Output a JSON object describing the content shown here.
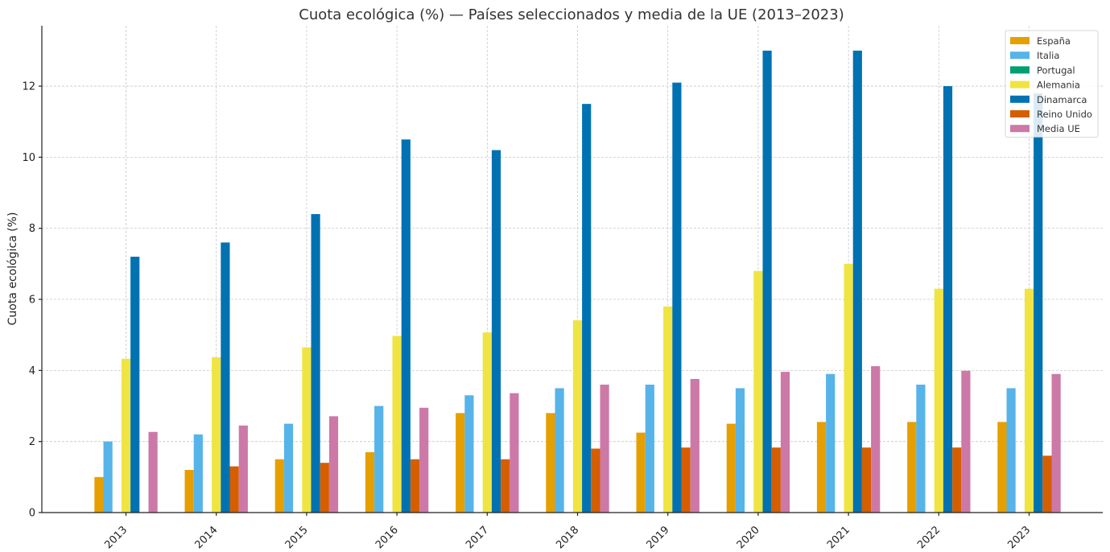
{
  "chart_data": {
    "type": "bar",
    "title": "Cuota ecológica (%) — Países seleccionados y media de la UE (2013–2023)",
    "xlabel": "",
    "ylabel": "Cuota ecológica (%)",
    "ylim": [
      0,
      13.7
    ],
    "yticks": [
      "0",
      "2",
      "4",
      "6",
      "8",
      "10",
      "12"
    ],
    "grid": true,
    "legend_position": "top-right",
    "categories": [
      "2013",
      "2014",
      "2015",
      "2016",
      "2017",
      "2018",
      "2019",
      "2020",
      "2021",
      "2022",
      "2023"
    ],
    "series": [
      {
        "name": "España",
        "color": "#E69F00",
        "values": [
          1.0,
          1.2,
          1.5,
          1.7,
          2.8,
          2.8,
          2.25,
          2.5,
          2.55,
          2.55,
          2.55
        ]
      },
      {
        "name": "Italia",
        "color": "#56B4E9",
        "values": [
          2.0,
          2.2,
          2.5,
          3.0,
          3.3,
          3.5,
          3.6,
          3.5,
          3.9,
          3.6,
          3.5
        ]
      },
      {
        "name": "Portugal",
        "color": "#009E73",
        "values": [
          null,
          null,
          null,
          null,
          null,
          null,
          null,
          null,
          null,
          null,
          null
        ]
      },
      {
        "name": "Alemania",
        "color": "#F0E442",
        "values": [
          4.33,
          4.37,
          4.65,
          4.97,
          5.07,
          5.41,
          5.8,
          6.8,
          7.0,
          6.3,
          6.3
        ]
      },
      {
        "name": "Dinamarca",
        "color": "#0072B2",
        "values": [
          7.2,
          7.6,
          8.4,
          10.5,
          10.2,
          11.5,
          12.1,
          13.0,
          13.0,
          12.0,
          11.8
        ]
      },
      {
        "name": "Reino Unido",
        "color": "#D55E00",
        "values": [
          null,
          1.3,
          1.4,
          1.5,
          1.5,
          1.8,
          1.83,
          1.83,
          1.83,
          1.83,
          1.6
        ]
      },
      {
        "name": "Media UE",
        "color": "#CC79A7",
        "values": [
          2.27,
          2.45,
          2.71,
          2.95,
          3.36,
          3.6,
          3.76,
          3.96,
          4.12,
          3.99,
          3.9
        ]
      }
    ]
  }
}
